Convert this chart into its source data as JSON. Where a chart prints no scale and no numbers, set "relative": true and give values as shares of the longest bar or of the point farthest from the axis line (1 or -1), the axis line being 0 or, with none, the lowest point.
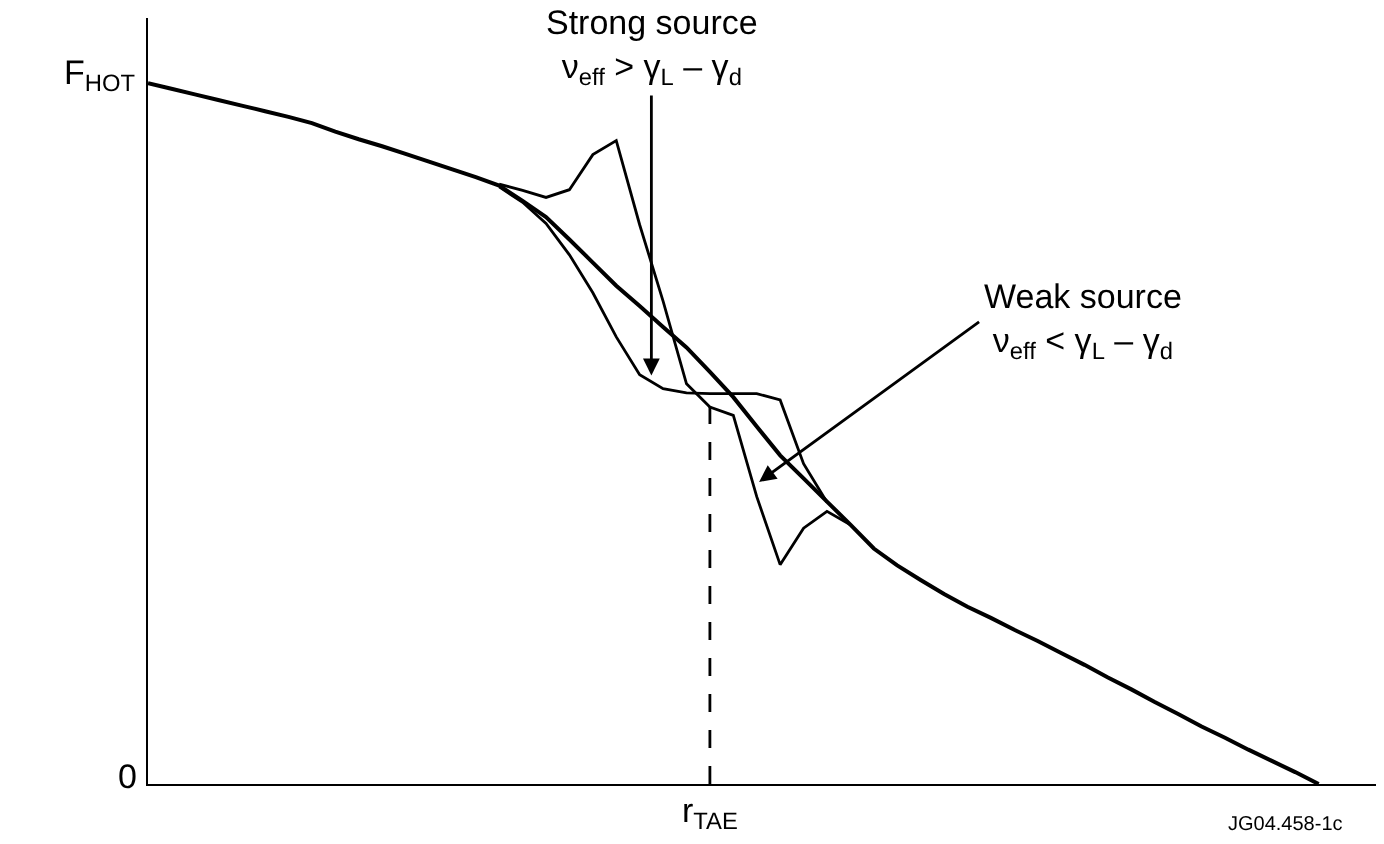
{
  "chart_data": {
    "type": "line",
    "relative": true,
    "categories": [
      null,
      null,
      null,
      null,
      null,
      null,
      null,
      null,
      null,
      null,
      null,
      null,
      null,
      null,
      null,
      null,
      null,
      null,
      null,
      null,
      null,
      null,
      null,
      null,
      null,
      null,
      null,
      null,
      null,
      null,
      null,
      null,
      null,
      null,
      null,
      null,
      null,
      null,
      null,
      null,
      null,
      null,
      null,
      null,
      null,
      null,
      null,
      null,
      null,
      null,
      null,
      null,
      null
    ],
    "marker": "none",
    "series": [
      {
        "color": "#000000",
        "values": [
          1,
          0.992,
          0.984,
          0.976,
          0.968,
          0.96,
          0.952,
          0.943,
          0.931,
          0.92,
          0.91,
          0.899,
          0.888,
          0.877,
          0.866,
          0.854,
          0.832,
          0.809,
          0.777,
          0.744,
          0.711,
          0.682,
          0.652,
          0.623,
          0.588,
          0.552,
          0.51,
          0.469,
          0.436,
          0.403,
          0.37,
          0.336,
          0.312,
          0.291,
          0.271,
          0.253,
          0.237,
          0.22,
          0.204,
          0.187,
          0.17,
          0.152,
          0.135,
          0.117,
          0.1,
          0.082,
          0.066,
          0.049,
          0.033,
          0.017,
          0,
          null,
          null
        ]
      },
      {
        "color": "#000000",
        "values": [
          null,
          null,
          null,
          null,
          null,
          null,
          null,
          null,
          null,
          null,
          null,
          null,
          null,
          null,
          null,
          0.856,
          0.847,
          0.837,
          0.848,
          0.898,
          0.918,
          0.798,
          0.689,
          0.571,
          0.538,
          0.526,
          0.41,
          0.313,
          0.365,
          0.389,
          0.37,
          null,
          null,
          null,
          null,
          null,
          null,
          null,
          null,
          null,
          null,
          null,
          null,
          null,
          null,
          null,
          null,
          null,
          null,
          null,
          null,
          null,
          null
        ]
      },
      {
        "color": "#000000",
        "values": [
          null,
          null,
          null,
          null,
          null,
          null,
          null,
          null,
          null,
          null,
          null,
          null,
          null,
          null,
          null,
          0.852,
          0.83,
          0.8,
          0.755,
          0.701,
          0.638,
          0.584,
          0.564,
          0.558,
          0.557,
          0.557,
          0.557,
          0.548,
          0.457,
          0.402,
          null,
          null,
          null,
          null,
          null,
          null,
          null,
          null,
          null,
          null,
          null,
          null,
          null,
          null,
          null,
          null,
          null,
          null,
          null,
          null,
          null,
          null,
          null
        ]
      }
    ],
    "annotations": [
      "r$_{TAE}$",
      "Strong source\nν$_{eff}$ > γ$_{L}$ – γ$_{d}$",
      "Weak source\nν$_{eff}$ < γ$_{L}$ – γ$_{d}$",
      "F$_{HOT}$",
      "0",
      "JG04.458-1c"
    ]
  }
}
